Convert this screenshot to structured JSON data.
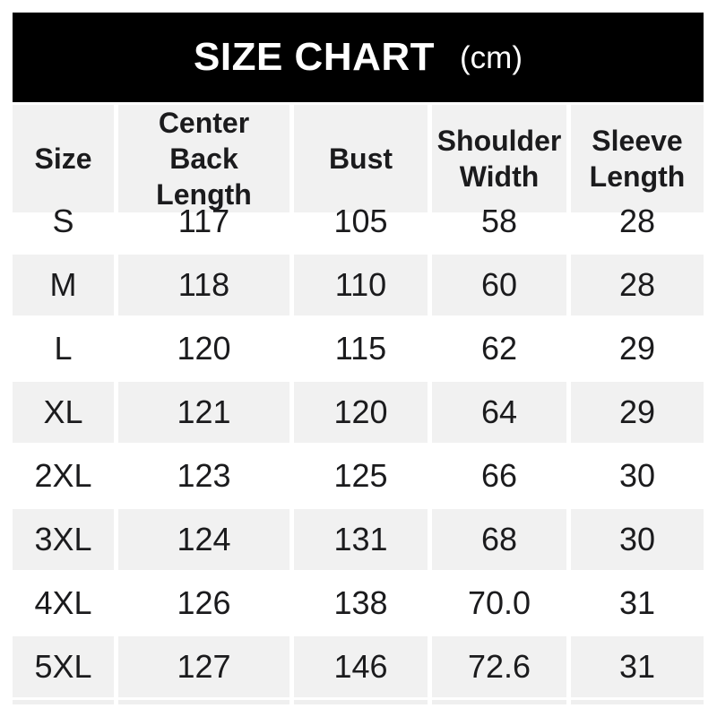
{
  "banner": {
    "title": "SIZE CHART",
    "unit": "(cm)"
  },
  "table": {
    "columns": [
      "Size",
      "Center Back Length",
      "Bust",
      "Shoulder Width",
      "Sleeve Length"
    ],
    "rows": [
      {
        "size": "S",
        "values": [
          "117",
          "105",
          "58",
          "28"
        ]
      },
      {
        "size": "M",
        "values": [
          "118",
          "110",
          "60",
          "28"
        ]
      },
      {
        "size": "L",
        "values": [
          "120",
          "115",
          "62",
          "29"
        ]
      },
      {
        "size": "XL",
        "values": [
          "121",
          "120",
          "64",
          "29"
        ]
      },
      {
        "size": "2XL",
        "values": [
          "123",
          "125",
          "66",
          "30"
        ]
      },
      {
        "size": "3XL",
        "values": [
          "124",
          "131",
          "68",
          "30"
        ]
      },
      {
        "size": "4XL",
        "values": [
          "126",
          "138",
          "70.0",
          "31"
        ]
      },
      {
        "size": "5XL",
        "values": [
          "127",
          "146",
          "72.6",
          "31"
        ]
      }
    ]
  },
  "colors": {
    "banner_background": "#000000",
    "banner_text": "#ffffff",
    "row_alternate": "#f1f1f1",
    "row_base": "#ffffff",
    "text": "#1b1b1d"
  },
  "chart_data": {
    "type": "table",
    "title": "SIZE CHART (cm)",
    "columns": [
      "Size",
      "Center Back Length",
      "Bust",
      "Shoulder Width",
      "Sleeve Length"
    ],
    "rows": [
      [
        "S",
        117,
        105,
        58,
        28
      ],
      [
        "M",
        118,
        110,
        60,
        28
      ],
      [
        "L",
        120,
        115,
        62,
        29
      ],
      [
        "XL",
        121,
        120,
        64,
        29
      ],
      [
        "2XL",
        123,
        125,
        66,
        30
      ],
      [
        "3XL",
        124,
        131,
        68,
        30
      ],
      [
        "4XL",
        126,
        138,
        70.0,
        31
      ],
      [
        "5XL",
        127,
        146,
        72.6,
        31
      ]
    ],
    "layout": "alternating row shading (white / light gray), header row gray, black title banner"
  }
}
